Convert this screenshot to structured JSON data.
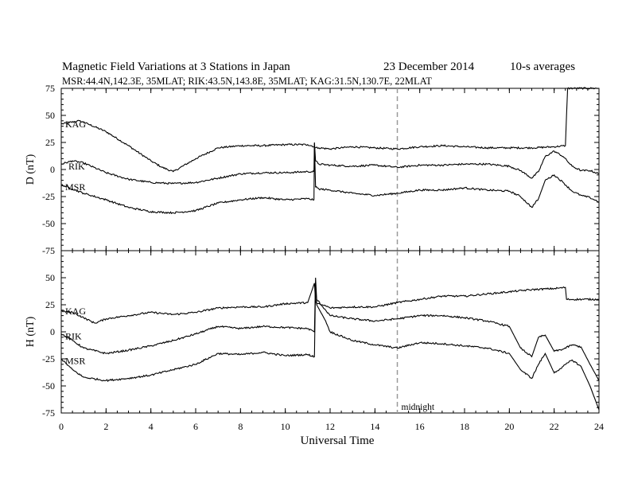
{
  "chart_data": {
    "type": "line",
    "title": "Magnetic Field Variations at 3 Stations in Japan",
    "date_label": "23 December 2014",
    "averaging_label": "10-s averages",
    "subtitle": "MSR:44.4N,142.3E, 35MLAT;  RIK:43.5N,143.8E, 35MLAT;  KAG:31.5N,130.7E, 22MLAT",
    "xlabel": "Universal Time",
    "xlim": [
      0,
      24
    ],
    "xticks": [
      "0",
      "2",
      "4",
      "6",
      "8",
      "10",
      "12",
      "14",
      "16",
      "18",
      "20",
      "22",
      "24"
    ],
    "midnight_marker": {
      "x": 15,
      "label": "midnight"
    },
    "panels": [
      {
        "ylabel": "D (nT)",
        "ylim": [
          -75,
          75
        ],
        "yticks": [
          "75",
          "50",
          "25",
          "0",
          "-25",
          "-50",
          "-75"
        ],
        "series": [
          {
            "name": "KAG",
            "x": [
              0,
              0.8,
              1.2,
              2,
              3,
              4,
              4.5,
              5,
              6,
              7,
              8,
              9,
              10,
              11,
              11.3,
              11.32,
              11.5,
              12,
              13,
              14,
              15,
              16,
              17,
              18,
              19,
              20,
              21,
              22,
              22.5,
              22.55,
              22.6,
              24
            ],
            "y": [
              42,
              45,
              42,
              35,
              22,
              8,
              2,
              -2,
              10,
              20,
              22,
              22,
              23,
              23,
              21,
              20,
              20,
              19,
              21,
              20,
              19,
              21,
              22,
              21,
              20,
              20,
              20,
              21,
              22,
              50,
              75,
              75
            ]
          },
          {
            "name": "RIK",
            "x": [
              0,
              0.5,
              1,
              2,
              3,
              4,
              5,
              6,
              7,
              8,
              9,
              10,
              11,
              11.28,
              11.3,
              11.35,
              11.5,
              12,
              13,
              14,
              15,
              16,
              17,
              18,
              19,
              20,
              20.5,
              21,
              21.3,
              21.6,
              22,
              22.4,
              22.8,
              23.2,
              23.6,
              24
            ],
            "y": [
              5,
              8,
              6,
              -3,
              -9,
              -12,
              -13,
              -12,
              -8,
              -4,
              -3,
              -3,
              -2,
              -2,
              25,
              8,
              5,
              4,
              3,
              4,
              2,
              4,
              4,
              5,
              5,
              3,
              -1,
              -8,
              -2,
              12,
              17,
              12,
              3,
              -1,
              -1,
              -4
            ]
          },
          {
            "name": "MSR",
            "x": [
              0,
              0.5,
              1,
              2,
              3,
              4,
              5,
              6,
              7,
              8,
              9,
              10,
              11,
              11.28,
              11.3,
              11.35,
              11.5,
              12,
              13,
              14,
              15,
              16,
              17,
              18,
              19,
              20,
              20.5,
              21,
              21.3,
              21.6,
              22,
              22.4,
              22.8,
              23.2,
              23.6,
              24
            ],
            "y": [
              -14,
              -18,
              -22,
              -28,
              -35,
              -39,
              -40,
              -38,
              -31,
              -28,
              -26,
              -28,
              -27,
              -28,
              24,
              -16,
              -18,
              -19,
              -22,
              -24,
              -22,
              -19,
              -19,
              -17,
              -19,
              -20,
              -25,
              -35,
              -27,
              -10,
              -5,
              -12,
              -20,
              -24,
              -26,
              -30
            ]
          }
        ]
      },
      {
        "ylabel": "H (nT)",
        "ylim": [
          -75,
          75
        ],
        "yticks": [
          "75",
          "50",
          "25",
          "0",
          "-25",
          "-50",
          "-75"
        ],
        "series": [
          {
            "name": "KAG",
            "x": [
              0,
              0.5,
              1,
              1.5,
              2,
              3,
              4,
              5,
              6,
              7,
              8,
              9,
              10,
              11,
              11.3,
              11.35,
              11.4,
              11.8,
              12,
              13,
              14,
              15,
              16,
              17,
              18,
              19,
              20,
              21,
              22,
              22.5,
              22.55,
              24
            ],
            "y": [
              19,
              18,
              13,
              8,
              12,
              15,
              18,
              16,
              18,
              22,
              23,
              23,
              26,
              27,
              45,
              28,
              26,
              24,
              22,
              23,
              23,
              27,
              30,
              33,
              33,
              35,
              37,
              39,
              40,
              41,
              30,
              30
            ]
          },
          {
            "name": "RIK",
            "x": [
              0,
              0.5,
              1,
              2,
              3,
              4,
              5,
              6,
              7,
              8,
              9,
              10,
              11,
              11.3,
              11.35,
              11.4,
              11.8,
              12,
              13,
              14,
              15,
              16,
              17,
              18,
              19,
              20,
              20.5,
              21,
              21.3,
              21.6,
              22,
              22.4,
              22.8,
              23.2,
              23.6,
              24
            ],
            "y": [
              -2,
              -8,
              -15,
              -20,
              -17,
              -13,
              -8,
              -2,
              5,
              3,
              5,
              4,
              3,
              0,
              50,
              30,
              20,
              15,
              12,
              10,
              12,
              15,
              15,
              13,
              10,
              5,
              -15,
              -23,
              -5,
              -3,
              -18,
              -16,
              -12,
              -14,
              -30,
              -45
            ]
          },
          {
            "name": "MSR",
            "x": [
              0,
              0.5,
              1,
              2,
              3,
              4,
              5,
              6,
              7,
              8,
              9,
              10,
              11,
              11.3,
              11.35,
              11.4,
              11.8,
              12,
              13,
              14,
              15,
              16,
              17,
              18,
              19,
              20,
              20.5,
              21,
              21.3,
              21.6,
              22,
              22.4,
              22.8,
              23.2,
              23.6,
              24
            ],
            "y": [
              -25,
              -35,
              -42,
              -45,
              -43,
              -40,
              -35,
              -30,
              -20,
              -21,
              -19,
              -22,
              -21,
              -23,
              45,
              25,
              10,
              0,
              -8,
              -12,
              -15,
              -10,
              -11,
              -13,
              -15,
              -20,
              -35,
              -43,
              -30,
              -20,
              -38,
              -32,
              -26,
              -32,
              -50,
              -72
            ]
          }
        ]
      }
    ]
  }
}
